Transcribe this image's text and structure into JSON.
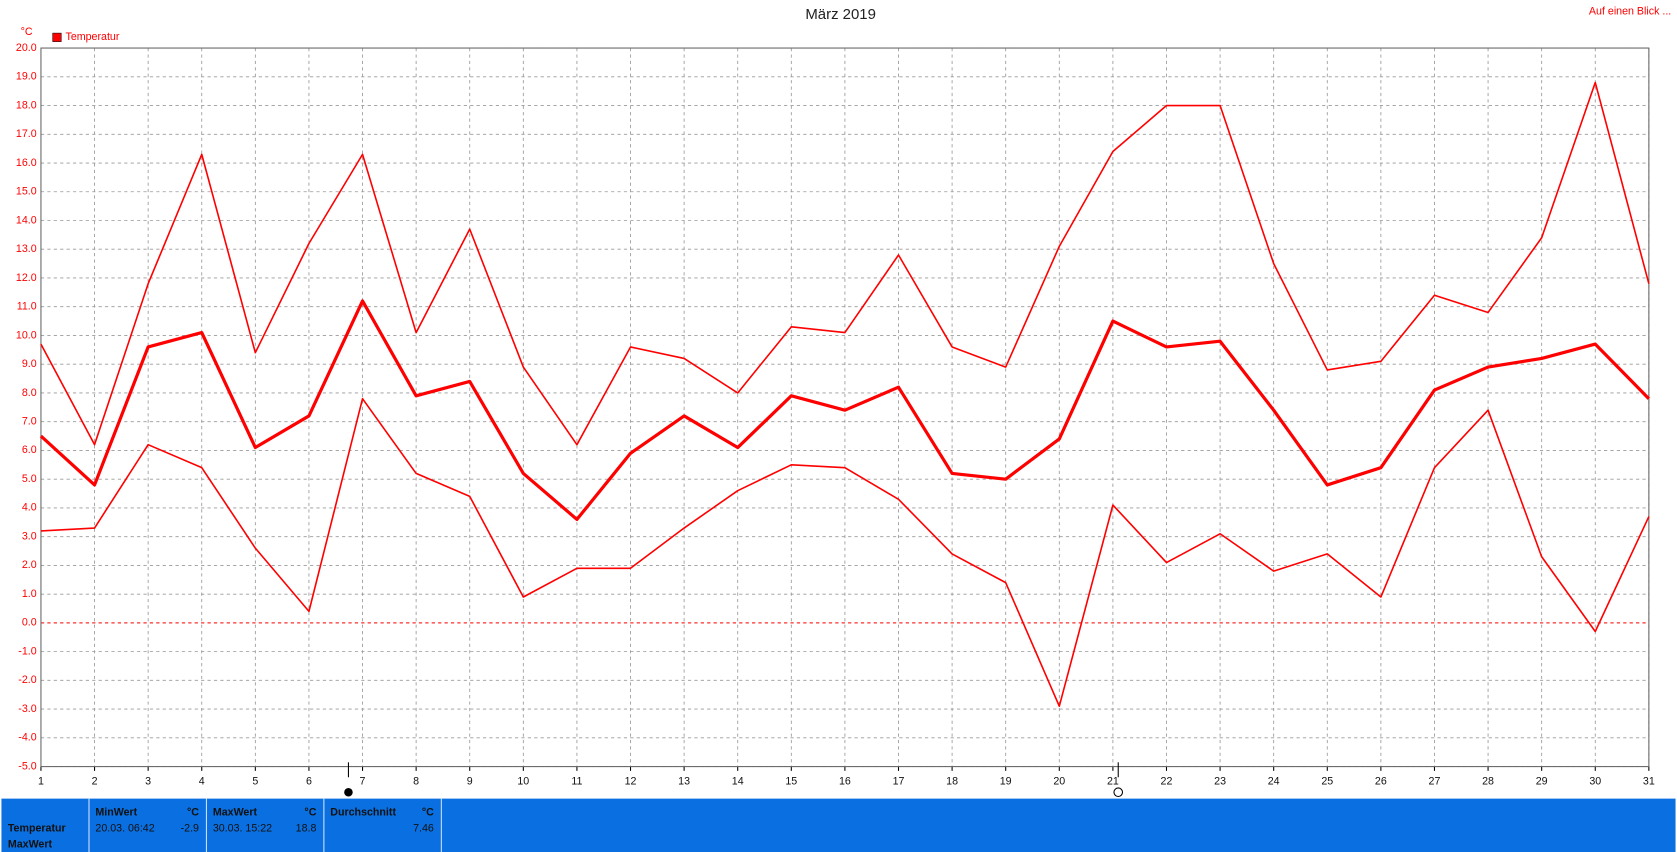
{
  "chart_data": {
    "type": "line",
    "title": "März 2019",
    "y_unit": "°C",
    "legend": "Temperatur",
    "legend_color": "#ff0000",
    "link": "Auf einen Blick ...",
    "x": [
      1,
      2,
      3,
      4,
      5,
      6,
      7,
      8,
      9,
      10,
      11,
      12,
      13,
      14,
      15,
      16,
      17,
      18,
      19,
      20,
      21,
      22,
      23,
      24,
      25,
      26,
      27,
      28,
      29,
      30,
      31
    ],
    "xlim": [
      1,
      31
    ],
    "xticks": [
      1,
      2,
      3,
      4,
      5,
      6,
      7,
      8,
      9,
      10,
      11,
      12,
      13,
      14,
      15,
      16,
      17,
      18,
      19,
      20,
      21,
      22,
      23,
      24,
      25,
      26,
      27,
      28,
      29,
      30,
      31
    ],
    "ylim": [
      -5,
      20
    ],
    "yticks": [
      {
        "value": 20,
        "label": "20.0"
      },
      {
        "value": 19,
        "label": "19.0"
      },
      {
        "value": 18,
        "label": "18.0"
      },
      {
        "value": 17,
        "label": "17.0"
      },
      {
        "value": 16,
        "label": "16.0"
      },
      {
        "value": 15,
        "label": "15.0"
      },
      {
        "value": 14,
        "label": "14.0"
      },
      {
        "value": 13,
        "label": "13.0"
      },
      {
        "value": 12,
        "label": "12.0"
      },
      {
        "value": 11,
        "label": "11.0"
      },
      {
        "value": 10,
        "label": "10.0"
      },
      {
        "value": 9,
        "label": "9.0"
      },
      {
        "value": 8,
        "label": "8.0"
      },
      {
        "value": 7,
        "label": "7.0"
      },
      {
        "value": 6,
        "label": "6.0"
      },
      {
        "value": 5,
        "label": "5.0"
      },
      {
        "value": 4,
        "label": "4.0"
      },
      {
        "value": 3,
        "label": "3.0"
      },
      {
        "value": 2,
        "label": "2.0"
      },
      {
        "value": 1,
        "label": "1.0"
      },
      {
        "value": 0,
        "label": "0.0"
      },
      {
        "value": -1,
        "label": "-1.0"
      },
      {
        "value": -2,
        "label": "-2.0"
      },
      {
        "value": -3,
        "label": "-3.0"
      },
      {
        "value": -4,
        "label": "-4.0"
      },
      {
        "value": -5,
        "label": "-5.0"
      }
    ],
    "grid": true,
    "zero_line": true,
    "series": [
      {
        "color": "#ff0000",
        "width": 1.5,
        "values": [
          9.7,
          6.2,
          11.8,
          16.3,
          9.4,
          13.2,
          16.3,
          10.1,
          13.7,
          8.9,
          6.2,
          9.6,
          9.2,
          8.0,
          10.3,
          10.1,
          12.8,
          9.6,
          8.9,
          13.1,
          16.4,
          18.0,
          18.0,
          12.5,
          8.8,
          9.1,
          11.4,
          10.8,
          13.4,
          18.8,
          11.8
        ]
      },
      {
        "color": "#ff0000",
        "width": 3,
        "values": [
          6.5,
          4.8,
          9.6,
          10.1,
          6.1,
          7.2,
          11.2,
          7.9,
          8.4,
          5.2,
          3.6,
          5.9,
          7.2,
          6.1,
          7.9,
          7.4,
          8.2,
          5.2,
          5.0,
          6.4,
          10.5,
          9.6,
          9.8,
          7.4,
          4.8,
          5.4,
          8.1,
          8.9,
          9.2,
          9.7,
          7.8
        ]
      },
      {
        "color": "#ff0000",
        "width": 1.5,
        "values": [
          3.2,
          3.3,
          6.2,
          5.4,
          2.6,
          0.4,
          7.8,
          5.2,
          4.4,
          0.9,
          1.9,
          1.9,
          3.3,
          4.6,
          5.5,
          5.4,
          4.3,
          2.4,
          1.4,
          -2.9,
          4.1,
          2.1,
          3.1,
          1.8,
          2.4,
          0.9,
          5.4,
          7.4,
          2.3,
          -0.3,
          3.7
        ]
      }
    ]
  },
  "summary": {
    "row_labels": [
      "Temperatur",
      "MaxWert"
    ],
    "columns": [
      {
        "header": "MinWert",
        "unit": "°C",
        "time": "20.03. 06:42",
        "value": -2.9
      },
      {
        "header": "MaxWert",
        "unit": "°C",
        "time": "30.03. 15:22",
        "value": 18.8
      },
      {
        "header": "Durchschnitt",
        "unit": "°C",
        "value": 7.46
      }
    ]
  }
}
